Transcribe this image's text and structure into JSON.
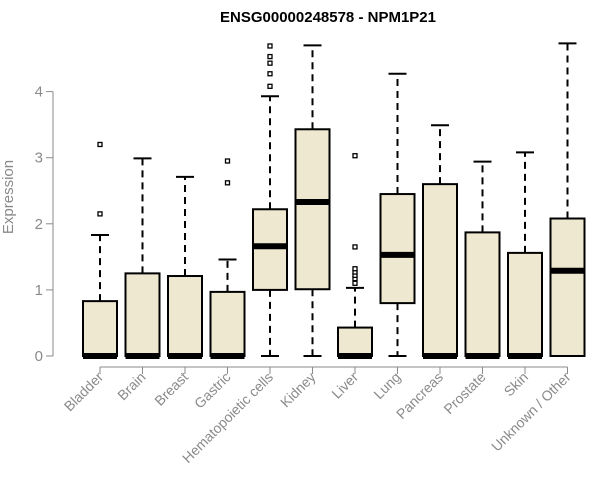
{
  "title": "ENSG00000248578 - NPM1P21",
  "colors": {
    "box_fill": "#efe8d0",
    "axis": "#8a8a8a",
    "ink": "#000000"
  },
  "chart_data": {
    "type": "boxplot",
    "title": "ENSG00000248578 - NPM1P21",
    "ylabel": "Expression",
    "xlabel": "",
    "ylim": [
      0,
      4.75
    ],
    "yticks": [
      0,
      1,
      2,
      3,
      4
    ],
    "grid": false,
    "categories": [
      "Bladder",
      "Brain",
      "Breast",
      "Gastric",
      "Hematopoietic cells",
      "Kidney",
      "Liver",
      "Lung",
      "Pancreas",
      "Prostate",
      "Skin",
      "Unknown / Other"
    ],
    "boxes": [
      {
        "q1": 0,
        "median": 0,
        "q3": 0.83,
        "whisker_low": 0,
        "whisker_high": 1.83,
        "outliers": [
          2.15,
          3.2
        ]
      },
      {
        "q1": 0,
        "median": 0,
        "q3": 1.25,
        "whisker_low": 0,
        "whisker_high": 2.99,
        "outliers": []
      },
      {
        "q1": 0,
        "median": 0,
        "q3": 1.21,
        "whisker_low": 0,
        "whisker_high": 2.71,
        "outliers": []
      },
      {
        "q1": 0,
        "median": 0,
        "q3": 0.97,
        "whisker_low": 0,
        "whisker_high": 1.46,
        "outliers": [
          2.62,
          2.95
        ]
      },
      {
        "q1": 1.0,
        "median": 1.66,
        "q3": 2.22,
        "whisker_low": 0,
        "whisker_high": 3.93,
        "outliers": [
          4.08,
          4.27,
          4.43,
          4.53,
          4.69
        ]
      },
      {
        "q1": 1.01,
        "median": 2.33,
        "q3": 3.43,
        "whisker_low": 0,
        "whisker_high": 4.7,
        "outliers": []
      },
      {
        "q1": 0,
        "median": 0,
        "q3": 0.43,
        "whisker_low": 0,
        "whisker_high": 1.03,
        "outliers": [
          1.1,
          1.17,
          1.22,
          1.27,
          1.32,
          1.65,
          3.03
        ]
      },
      {
        "q1": 0.8,
        "median": 1.53,
        "q3": 2.45,
        "whisker_low": 0,
        "whisker_high": 4.27,
        "outliers": []
      },
      {
        "q1": 0,
        "median": 0,
        "q3": 2.6,
        "whisker_low": 0,
        "whisker_high": 3.49,
        "outliers": []
      },
      {
        "q1": 0,
        "median": 0,
        "q3": 1.87,
        "whisker_low": 0,
        "whisker_high": 2.94,
        "outliers": []
      },
      {
        "q1": 0,
        "median": 0,
        "q3": 1.56,
        "whisker_low": 0,
        "whisker_high": 3.08,
        "outliers": []
      },
      {
        "q1": 0,
        "median": 1.29,
        "q3": 2.08,
        "whisker_low": 0,
        "whisker_high": 4.73,
        "outliers": []
      }
    ]
  }
}
